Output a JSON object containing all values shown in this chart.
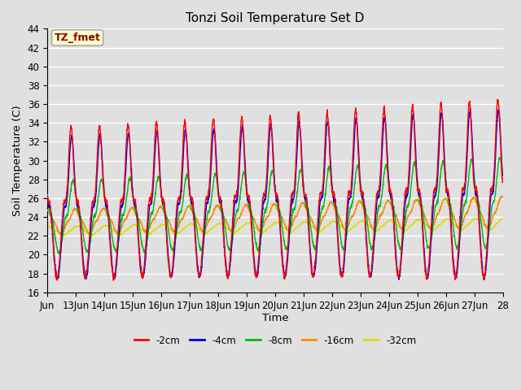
{
  "title": "Tonzi Soil Temperature Set D",
  "xlabel": "Time",
  "ylabel": "Soil Temperature (C)",
  "ylim": [
    16,
    44
  ],
  "yticks": [
    16,
    18,
    20,
    22,
    24,
    26,
    28,
    30,
    32,
    34,
    36,
    38,
    40,
    42,
    44
  ],
  "annotation_text": "TZ_fmet",
  "annotation_color": "#8B0000",
  "annotation_bg": "#FFFFCC",
  "annotation_border": "#AAAAAA",
  "series_colors": [
    "#FF0000",
    "#0000DD",
    "#00BB00",
    "#FF8800",
    "#DDDD00"
  ],
  "series_labels": [
    "-2cm",
    "-4cm",
    "-8cm",
    "-16cm",
    "-32cm"
  ],
  "bg_color": "#E0E0E0",
  "plot_bg_color": "#E0E0E0",
  "grid_color": "#FFFFFF",
  "n_days": 16,
  "start_day": 12,
  "points_per_day": 144,
  "line_width": 1.0,
  "figwidth": 6.4,
  "figheight": 4.8,
  "dpi": 100
}
